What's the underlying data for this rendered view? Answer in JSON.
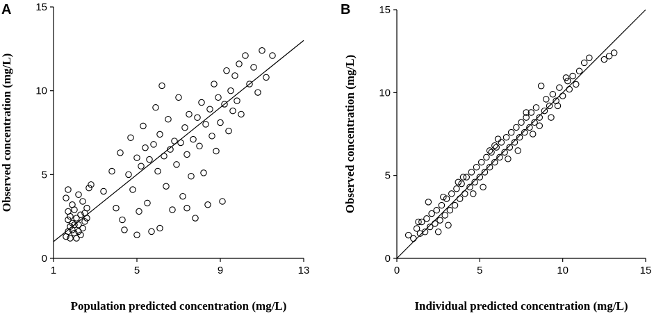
{
  "chart_data": [
    {
      "panel": "A",
      "type": "scatter",
      "xlabel": "Population predicted concentration (mg/L)",
      "ylabel": "Observed concentration (mg/L)",
      "xlim": [
        1,
        13
      ],
      "ylim": [
        0,
        15
      ],
      "xticks": [
        1,
        5,
        9,
        13
      ],
      "yticks": [
        0,
        5,
        10,
        15
      ],
      "xtick_labels": [
        "1",
        "5",
        "9",
        "13"
      ],
      "ytick_labels": [
        "0",
        "5",
        "10",
        "15"
      ],
      "reference_line": "identity (y = x)",
      "points": [
        [
          1.6,
          1.3
        ],
        [
          1.7,
          1.6
        ],
        [
          1.8,
          1.9
        ],
        [
          1.9,
          2.1
        ],
        [
          2.0,
          1.5
        ],
        [
          2.1,
          2.4
        ],
        [
          1.7,
          2.8
        ],
        [
          2.2,
          2.0
        ],
        [
          1.9,
          3.2
        ],
        [
          2.3,
          2.6
        ],
        [
          1.8,
          1.2
        ],
        [
          2.0,
          2.9
        ],
        [
          2.4,
          3.4
        ],
        [
          2.6,
          3.0
        ],
        [
          2.7,
          4.2
        ],
        [
          1.6,
          3.6
        ],
        [
          2.1,
          1.2
        ],
        [
          2.5,
          2.2
        ],
        [
          1.7,
          2.3
        ],
        [
          2.2,
          3.8
        ],
        [
          1.9,
          1.7
        ],
        [
          2.3,
          1.4
        ],
        [
          2.0,
          2.0
        ],
        [
          1.8,
          2.5
        ],
        [
          2.4,
          1.8
        ],
        [
          2.8,
          4.4
        ],
        [
          2.5,
          2.7
        ],
        [
          1.7,
          4.1
        ],
        [
          2.2,
          1.6
        ],
        [
          2.6,
          2.4
        ],
        [
          3.4,
          4.0
        ],
        [
          3.8,
          5.2
        ],
        [
          4.0,
          3.0
        ],
        [
          4.2,
          6.3
        ],
        [
          4.4,
          1.7
        ],
        [
          4.6,
          5.0
        ],
        [
          4.7,
          7.2
        ],
        [
          4.8,
          4.1
        ],
        [
          5.0,
          6.0
        ],
        [
          5.1,
          2.8
        ],
        [
          5.2,
          5.5
        ],
        [
          5.3,
          7.9
        ],
        [
          5.4,
          6.6
        ],
        [
          5.5,
          3.3
        ],
        [
          5.6,
          5.9
        ],
        [
          5.7,
          1.6
        ],
        [
          5.8,
          6.8
        ],
        [
          5.9,
          9.0
        ],
        [
          6.0,
          5.2
        ],
        [
          6.1,
          7.4
        ],
        [
          6.2,
          10.3
        ],
        [
          6.3,
          6.1
        ],
        [
          6.4,
          4.3
        ],
        [
          6.5,
          8.3
        ],
        [
          6.6,
          6.5
        ],
        [
          6.7,
          2.9
        ],
        [
          6.8,
          7.0
        ],
        [
          6.9,
          5.6
        ],
        [
          7.0,
          9.6
        ],
        [
          7.1,
          6.9
        ],
        [
          7.2,
          3.7
        ],
        [
          7.3,
          7.8
        ],
        [
          7.4,
          6.2
        ],
        [
          7.5,
          8.6
        ],
        [
          7.6,
          4.9
        ],
        [
          7.7,
          7.1
        ],
        [
          7.8,
          2.4
        ],
        [
          7.9,
          8.4
        ],
        [
          8.0,
          6.7
        ],
        [
          8.1,
          9.3
        ],
        [
          8.2,
          5.1
        ],
        [
          8.3,
          8.0
        ],
        [
          8.4,
          3.2
        ],
        [
          8.5,
          8.9
        ],
        [
          8.6,
          7.3
        ],
        [
          8.7,
          10.4
        ],
        [
          8.8,
          6.4
        ],
        [
          8.9,
          9.6
        ],
        [
          9.0,
          8.1
        ],
        [
          9.1,
          3.4
        ],
        [
          9.2,
          9.2
        ],
        [
          9.3,
          11.2
        ],
        [
          9.4,
          7.6
        ],
        [
          9.5,
          10.0
        ],
        [
          9.6,
          8.8
        ],
        [
          9.7,
          10.9
        ],
        [
          9.8,
          9.4
        ],
        [
          9.9,
          11.6
        ],
        [
          10.0,
          8.6
        ],
        [
          10.2,
          12.1
        ],
        [
          10.4,
          10.4
        ],
        [
          10.6,
          11.4
        ],
        [
          10.8,
          9.9
        ],
        [
          11.0,
          12.4
        ],
        [
          11.2,
          10.8
        ],
        [
          11.5,
          12.1
        ],
        [
          4.3,
          2.3
        ],
        [
          5.0,
          1.4
        ],
        [
          6.1,
          1.8
        ],
        [
          7.4,
          3.0
        ]
      ]
    },
    {
      "panel": "B",
      "type": "scatter",
      "xlabel": "Individual predicted concentration (mg/L)",
      "ylabel": "Observed concentration (mg/L)",
      "xlim": [
        0,
        15
      ],
      "ylim": [
        0,
        15
      ],
      "xticks": [
        0,
        5,
        10,
        15
      ],
      "yticks": [
        0,
        5,
        10,
        15
      ],
      "xtick_labels": [
        "0",
        "5",
        "10",
        "15"
      ],
      "ytick_labels": [
        "0",
        "5",
        "10",
        "15"
      ],
      "reference_line": "identity (y = x)",
      "points": [
        [
          0.7,
          1.4
        ],
        [
          1.0,
          1.2
        ],
        [
          1.2,
          1.8
        ],
        [
          1.4,
          1.5
        ],
        [
          1.5,
          2.2
        ],
        [
          1.7,
          1.6
        ],
        [
          1.8,
          2.4
        ],
        [
          2.0,
          1.9
        ],
        [
          2.1,
          2.7
        ],
        [
          2.3,
          2.1
        ],
        [
          2.4,
          2.9
        ],
        [
          2.6,
          2.3
        ],
        [
          2.7,
          3.2
        ],
        [
          2.9,
          2.6
        ],
        [
          3.0,
          3.6
        ],
        [
          3.2,
          2.9
        ],
        [
          3.3,
          3.9
        ],
        [
          3.5,
          3.2
        ],
        [
          3.6,
          4.2
        ],
        [
          3.8,
          3.6
        ],
        [
          3.9,
          4.5
        ],
        [
          4.1,
          3.9
        ],
        [
          4.2,
          4.9
        ],
        [
          4.4,
          4.3
        ],
        [
          4.5,
          5.2
        ],
        [
          4.7,
          4.6
        ],
        [
          4.8,
          5.5
        ],
        [
          5.0,
          4.9
        ],
        [
          5.1,
          5.8
        ],
        [
          5.3,
          5.2
        ],
        [
          5.4,
          6.1
        ],
        [
          5.6,
          5.5
        ],
        [
          5.7,
          6.4
        ],
        [
          5.9,
          5.8
        ],
        [
          6.0,
          6.7
        ],
        [
          6.2,
          6.1
        ],
        [
          6.3,
          7.0
        ],
        [
          6.5,
          6.4
        ],
        [
          6.6,
          7.3
        ],
        [
          6.8,
          6.7
        ],
        [
          6.9,
          7.6
        ],
        [
          7.1,
          7.0
        ],
        [
          7.2,
          7.9
        ],
        [
          7.4,
          7.3
        ],
        [
          7.5,
          8.2
        ],
        [
          7.7,
          7.6
        ],
        [
          7.8,
          8.5
        ],
        [
          8.0,
          7.9
        ],
        [
          8.1,
          8.8
        ],
        [
          8.3,
          8.2
        ],
        [
          8.4,
          9.1
        ],
        [
          8.6,
          8.5
        ],
        [
          8.7,
          10.4
        ],
        [
          8.9,
          8.9
        ],
        [
          9.0,
          9.6
        ],
        [
          9.2,
          9.2
        ],
        [
          9.4,
          9.9
        ],
        [
          9.6,
          9.5
        ],
        [
          9.8,
          10.3
        ],
        [
          10.0,
          9.8
        ],
        [
          10.2,
          10.9
        ],
        [
          10.4,
          10.2
        ],
        [
          10.6,
          11.0
        ],
        [
          10.8,
          10.5
        ],
        [
          11.0,
          11.3
        ],
        [
          11.3,
          11.8
        ],
        [
          11.6,
          12.1
        ],
        [
          12.5,
          12.0
        ],
        [
          12.8,
          12.2
        ],
        [
          13.1,
          12.4
        ],
        [
          1.9,
          3.4
        ],
        [
          3.1,
          2.0
        ],
        [
          4.0,
          4.9
        ],
        [
          5.2,
          4.3
        ],
        [
          6.1,
          7.2
        ],
        [
          7.3,
          6.5
        ],
        [
          8.2,
          7.5
        ],
        [
          9.3,
          8.5
        ],
        [
          2.5,
          1.6
        ],
        [
          3.7,
          4.6
        ],
        [
          4.6,
          3.9
        ],
        [
          5.6,
          6.5
        ],
        [
          6.7,
          6.0
        ],
        [
          7.8,
          8.8
        ],
        [
          8.6,
          8.0
        ],
        [
          9.7,
          9.2
        ],
        [
          10.3,
          10.7
        ],
        [
          1.3,
          2.2
        ],
        [
          2.8,
          3.7
        ],
        [
          5.9,
          6.8
        ]
      ]
    }
  ]
}
